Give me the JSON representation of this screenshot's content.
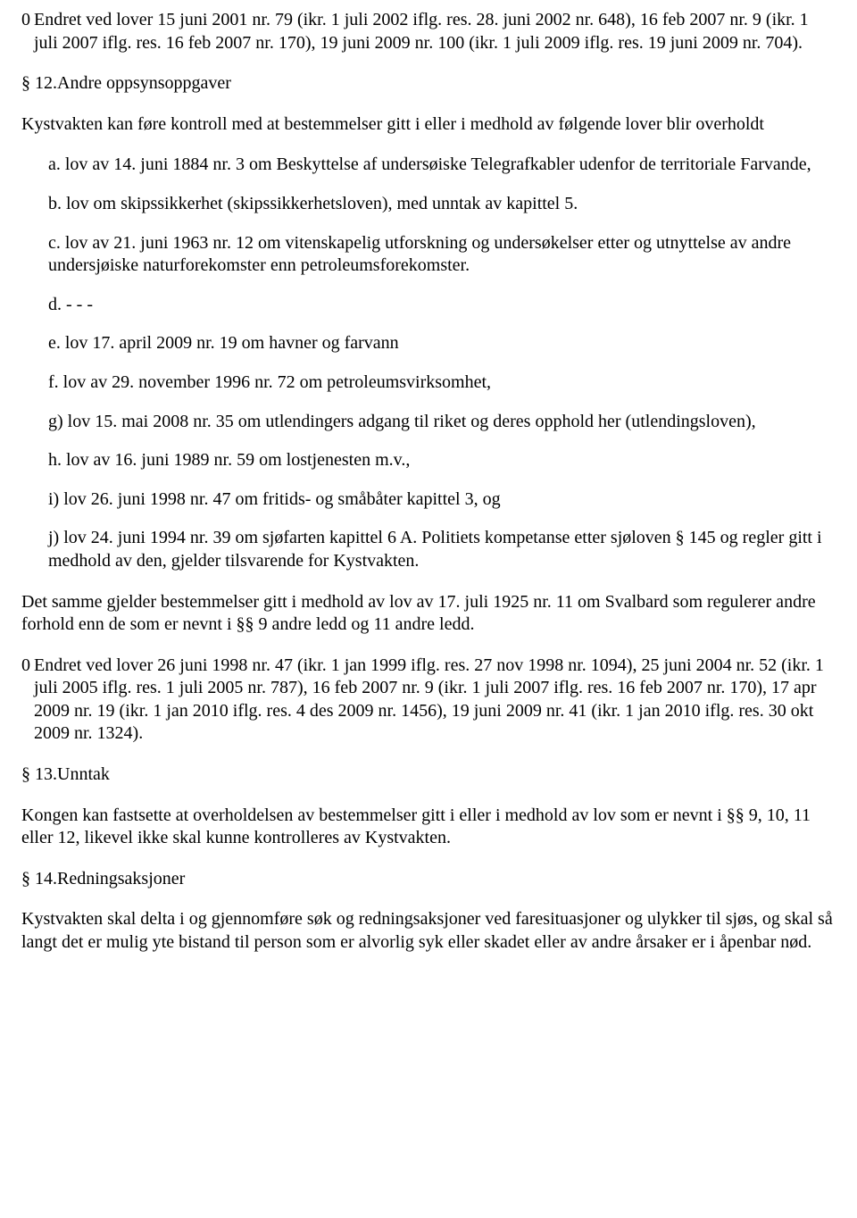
{
  "p1_zero": "0",
  "p1": "Endret ved lover 15 juni 2001 nr. 79 (ikr. 1 juli 2002 iflg. res. 28. juni 2002 nr. 648), 16 feb 2007 nr. 9 (ikr. 1 juli 2007 iflg. res. 16 feb 2007 nr. 170), 19 juni 2009 nr. 100 (ikr. 1 juli 2009 iflg. res. 19 juni 2009 nr. 704).",
  "s12": "§ 12.Andre oppsynsoppgaver",
  "p2": "Kystvakten kan føre kontroll med at bestemmelser gitt i eller i medhold av følgende lover blir overholdt",
  "list": {
    "a": "a. lov av 14. juni 1884 nr. 3 om Beskyttelse af undersøiske Telegrafkabler udenfor de territoriale Farvande,",
    "b": "b. lov om skipssikkerhet (skipssikkerhetsloven), med unntak av kapittel 5.",
    "c": "c. lov av 21. juni 1963 nr. 12 om vitenskapelig utforskning og undersøkelser etter og utnyttelse av andre undersjøiske naturforekomster enn petroleumsforekomster.",
    "d": "d. - - -",
    "e": "e. lov 17. april 2009 nr. 19 om havner og farvann",
    "f": "f. lov av 29. november 1996 nr. 72 om petroleumsvirksomhet,",
    "g": "g) lov 15. mai 2008 nr. 35 om utlendingers adgang til riket og deres opphold her (utlendingsloven),",
    "h": "h. lov av 16. juni 1989 nr. 59 om lostjenesten m.v.,",
    "i": "i) lov 26. juni 1998 nr. 47 om fritids- og småbåter kapittel 3, og",
    "j": "j) lov 24. juni 1994 nr. 39 om sjøfarten kapittel 6 A. Politiets kompetanse etter sjøloven § 145 og regler gitt i medhold av den, gjelder tilsvarende for Kystvakten."
  },
  "p3": "Det samme gjelder bestemmelser gitt i medhold av lov av 17. juli 1925 nr. 11 om Svalbard som regulerer andre forhold enn de som er nevnt i §§ 9 andre ledd og 11 andre ledd.",
  "p4_zero": "0",
  "p4": "Endret ved lover 26 juni 1998 nr. 47 (ikr. 1 jan 1999 iflg. res. 27 nov 1998 nr. 1094), 25 juni 2004 nr. 52 (ikr. 1 juli 2005 iflg. res. 1 juli 2005 nr. 787), 16 feb 2007 nr. 9 (ikr. 1 juli 2007 iflg. res. 16 feb 2007 nr. 170), 17 apr 2009 nr. 19 (ikr. 1 jan 2010 iflg. res. 4 des 2009 nr. 1456), 19 juni 2009 nr. 41 (ikr. 1 jan 2010 iflg. res. 30 okt 2009 nr. 1324).",
  "s13": "§ 13.Unntak",
  "p5": "Kongen kan fastsette at overholdelsen av bestemmelser gitt i eller i medhold av lov som er nevnt i §§ 9, 10, 11 eller 12, likevel ikke skal kunne kontrolleres av Kystvakten.",
  "s14": "§ 14.Redningsaksjoner",
  "p6": "Kystvakten skal delta i og gjennomføre søk og redningsaksjoner ved faresituasjoner og ulykker til sjøs, og skal så langt det er mulig yte bistand til person som er alvorlig syk eller skadet eller av andre årsaker er i åpenbar nød."
}
